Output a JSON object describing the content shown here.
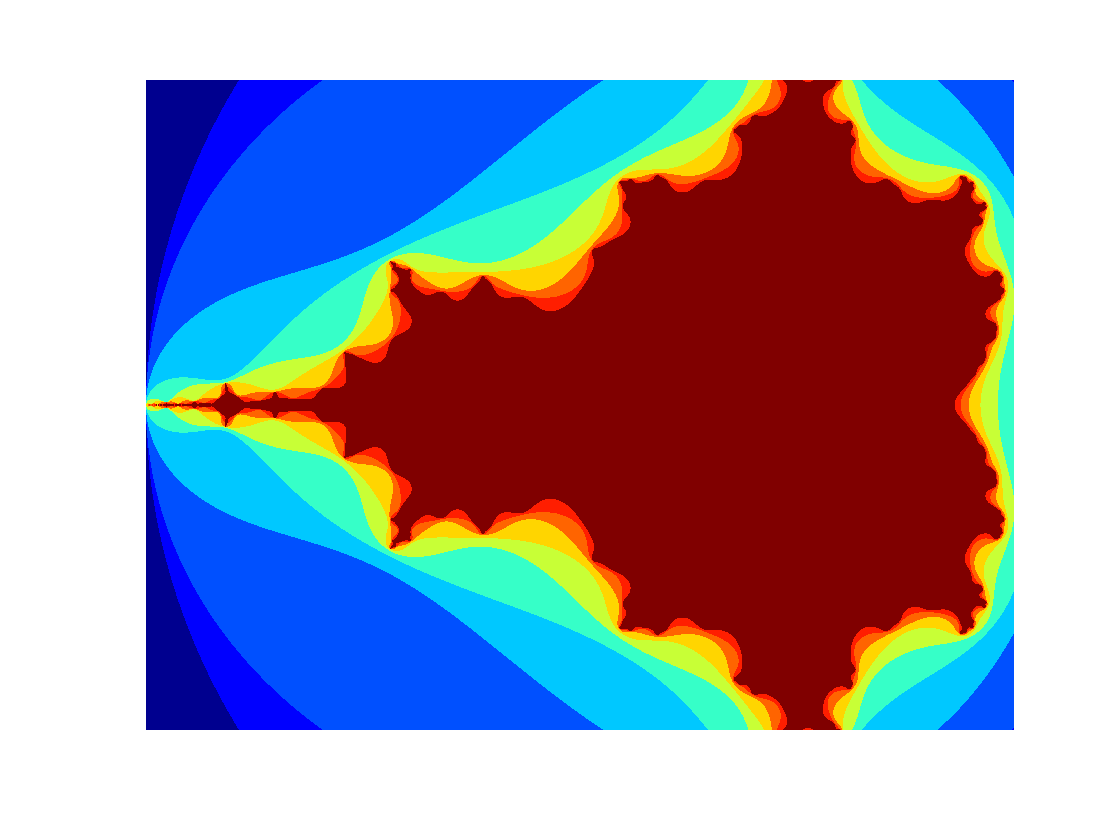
{
  "image": {
    "kind": "mandelbrot-set-escape-time",
    "colormap": "jet",
    "colors": [
      "#00008f",
      "#0000ff",
      "#0050ff",
      "#00c8ff",
      "#36ffc8",
      "#c8ff36",
      "#ffd500",
      "#ff6400",
      "#ff1e00",
      "#800000"
    ],
    "complex_plane": {
      "real_range": [
        -2.0,
        0.5
      ],
      "imag_range": [
        -1.0,
        1.0
      ]
    },
    "max_iterations": 10,
    "axes_visible": false
  }
}
